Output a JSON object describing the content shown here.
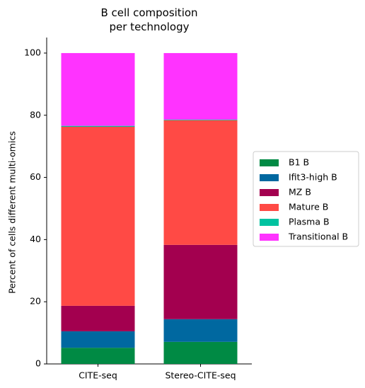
{
  "chart_data": {
    "type": "stacked_bar",
    "title": "B cell composition\nper technology",
    "y_label": "Percent of cells different multi-omics",
    "categories": [
      "CITE-seq",
      "Stereo-CITE-seq"
    ],
    "series": [
      {
        "name": "B1 B",
        "color": "#008a44",
        "values": [
          5.2,
          7.1
        ]
      },
      {
        "name": "Ifit3-high B",
        "color": "#0068a0",
        "values": [
          5.3,
          7.3
        ]
      },
      {
        "name": "MZ B",
        "color": "#a3004f",
        "values": [
          8.2,
          23.9
        ]
      },
      {
        "name": "Mature B",
        "color": "#ff4a45",
        "values": [
          57.6,
          40.1
        ]
      },
      {
        "name": "Plasma B",
        "color": "#00c2a0",
        "values": [
          0.3,
          0.2
        ]
      },
      {
        "name": "Transitional B",
        "color": "#ff33ff",
        "values": [
          23.4,
          21.4
        ]
      }
    ],
    "ylim": [
      0,
      105
    ],
    "yticks": [
      0,
      20,
      40,
      60,
      80,
      100
    ],
    "legend": "right"
  }
}
